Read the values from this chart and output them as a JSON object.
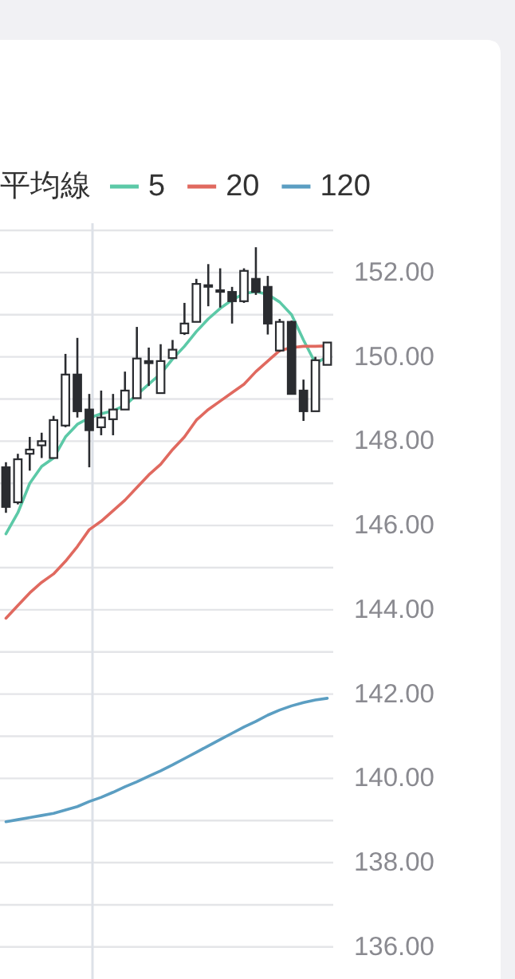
{
  "chart_data": {
    "type": "candlestick",
    "legend_title": "平均線",
    "legend": "top right",
    "grid": "y",
    "categories": [
      null,
      null,
      null,
      null,
      null,
      null,
      null,
      null,
      null,
      null,
      null,
      null,
      null,
      null,
      null,
      null,
      null,
      null,
      null,
      null,
      null,
      null,
      null,
      null,
      null,
      null,
      null,
      null
    ],
    "ohlc": [
      [
        147.38,
        147.5,
        146.3,
        146.44
      ],
      [
        146.55,
        147.7,
        146.5,
        147.57
      ],
      [
        147.7,
        148.1,
        147.3,
        147.8
      ],
      [
        147.9,
        148.2,
        147.6,
        148.0
      ],
      [
        147.6,
        148.6,
        147.6,
        148.5
      ],
      [
        148.37,
        150.07,
        148.33,
        149.58
      ],
      [
        149.58,
        150.45,
        148.56,
        148.71
      ],
      [
        148.75,
        149.12,
        147.38,
        148.26
      ],
      [
        148.33,
        149.2,
        148.14,
        148.56
      ],
      [
        148.52,
        149.12,
        148.14,
        148.75
      ],
      [
        148.75,
        149.65,
        148.75,
        149.2
      ],
      [
        149.02,
        150.71,
        149.02,
        149.96
      ],
      [
        149.9,
        150.22,
        149.31,
        149.85
      ],
      [
        149.14,
        150.3,
        149.14,
        149.9
      ],
      [
        149.97,
        150.4,
        149.97,
        150.17
      ],
      [
        150.56,
        151.28,
        150.52,
        150.79
      ],
      [
        150.83,
        151.85,
        150.83,
        151.73
      ],
      [
        151.68,
        152.2,
        151.2,
        151.7
      ],
      [
        151.58,
        152.1,
        151.17,
        151.55
      ],
      [
        151.54,
        151.66,
        150.79,
        151.32
      ],
      [
        151.32,
        152.1,
        151.28,
        152.04
      ],
      [
        151.85,
        152.6,
        151.47,
        151.54
      ],
      [
        151.66,
        151.92,
        150.53,
        150.79
      ],
      [
        150.15,
        150.9,
        150.12,
        150.83
      ],
      [
        150.83,
        150.86,
        149.12,
        149.12
      ],
      [
        149.2,
        149.46,
        148.48,
        148.71
      ],
      [
        148.71,
        150.0,
        148.71,
        149.92
      ],
      [
        149.81,
        150.34,
        149.81,
        150.34
      ]
    ],
    "series": [
      {
        "name": "5",
        "type": "line",
        "color": "#5cc9a7",
        "values": [
          145.8,
          146.3,
          147.0,
          147.4,
          147.6,
          148.1,
          148.4,
          148.55,
          148.65,
          148.72,
          148.85,
          149.1,
          149.35,
          149.6,
          149.95,
          150.25,
          150.6,
          150.9,
          151.15,
          151.35,
          151.5,
          151.55,
          151.48,
          151.3,
          151.0,
          150.4,
          149.85,
          150.0
        ]
      },
      {
        "name": "20",
        "type": "line",
        "color": "#e0695f",
        "values": [
          143.8,
          144.1,
          144.4,
          144.65,
          144.85,
          145.15,
          145.5,
          145.9,
          146.1,
          146.35,
          146.6,
          146.9,
          147.2,
          147.45,
          147.8,
          148.1,
          148.5,
          148.75,
          148.95,
          149.15,
          149.35,
          149.65,
          149.9,
          150.15,
          150.22,
          150.25,
          150.25,
          150.26
        ]
      },
      {
        "name": "120",
        "type": "line",
        "color": "#5b9ec2",
        "values": [
          138.97,
          139.02,
          139.07,
          139.12,
          139.17,
          139.25,
          139.33,
          139.45,
          139.55,
          139.67,
          139.8,
          139.92,
          140.05,
          140.18,
          140.32,
          140.47,
          140.62,
          140.77,
          140.92,
          141.07,
          141.22,
          141.35,
          141.5,
          141.62,
          141.72,
          141.8,
          141.86,
          141.9
        ]
      }
    ],
    "ylim": [
      135.24,
      153.17
    ],
    "yticks": [
      {
        "value": 136,
        "label": "136.00"
      },
      {
        "value": 137,
        "label": null
      },
      {
        "value": 138,
        "label": "138.00"
      },
      {
        "value": 139,
        "label": null
      },
      {
        "value": 140,
        "label": "140.00"
      },
      {
        "value": 141,
        "label": null
      },
      {
        "value": 142,
        "label": "142.00"
      },
      {
        "value": 143,
        "label": null
      },
      {
        "value": 144,
        "label": "144.00"
      },
      {
        "value": 145,
        "label": null
      },
      {
        "value": 146,
        "label": "146.00"
      },
      {
        "value": 147,
        "label": null
      },
      {
        "value": 148,
        "label": "148.00"
      },
      {
        "value": 149,
        "label": null
      },
      {
        "value": 150,
        "label": "150.00"
      },
      {
        "value": 151,
        "label": null
      },
      {
        "value": 152,
        "label": "152.00"
      },
      {
        "value": 153,
        "label": null
      }
    ]
  }
}
